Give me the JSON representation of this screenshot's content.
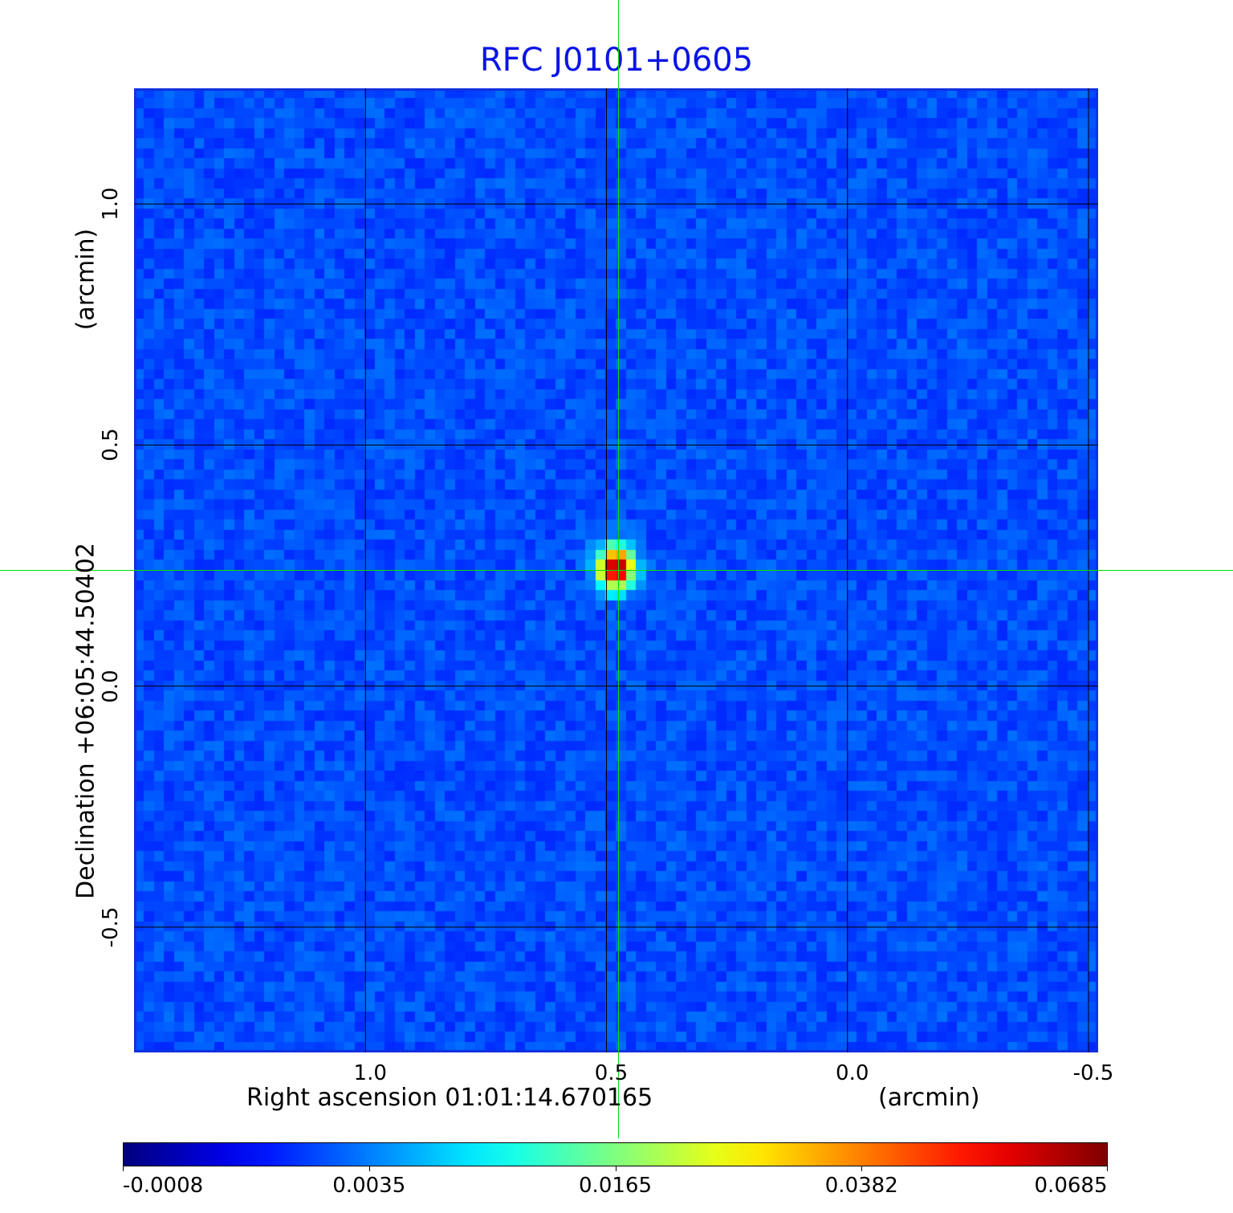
{
  "chart_data": {
    "type": "heatmap",
    "title": "RFC J0101+0605",
    "xlabel": "Right ascension  01:01:14.670165",
    "xunit": "(arcmin)",
    "ylabel": "Declination  +06:05:44.50402",
    "yunit": "(arcmin)",
    "x_ticks": [
      "1.0",
      "0.5",
      "0.0",
      "-0.5"
    ],
    "y_ticks": [
      "1.0",
      "0.5",
      "0.0",
      "-0.5"
    ],
    "x_tick_values": [
      1.0,
      0.5,
      0.0,
      -0.5
    ],
    "y_tick_values": [
      1.0,
      0.5,
      0.0,
      -0.5
    ],
    "xlim": [
      1.48,
      -0.52
    ],
    "ylim": [
      -0.76,
      1.24
    ],
    "grid": true,
    "grid_color": "#000000",
    "crosshair_color": "#00e000",
    "crosshair": {
      "x": 0.475,
      "y": 0.24
    },
    "source_peak": {
      "x": 0.48,
      "y": 0.245,
      "value": 0.0685
    },
    "colormap": "jet",
    "colorbar": {
      "placement": "bottom",
      "tick_labels": [
        "-0.0008",
        "0.0035",
        "0.0165",
        "0.0382",
        "0.0685"
      ],
      "min": -0.0008,
      "max": 0.0685
    },
    "title_color": "#0a14e6"
  }
}
